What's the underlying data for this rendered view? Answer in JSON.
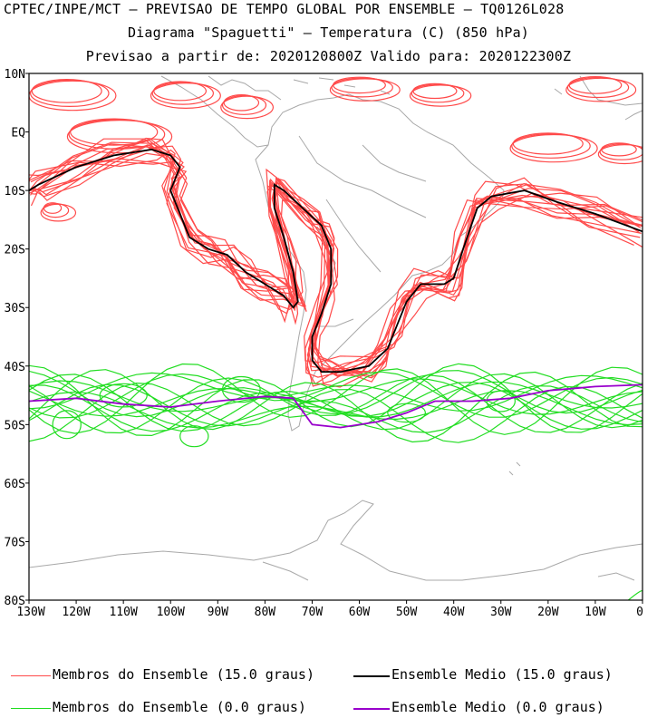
{
  "header": {
    "line1": "CPTEC/INPE/MCT – PREVISAO DE TEMPO GLOBAL POR ENSEMBLE – TQ0126L028",
    "line2": "Diagrama \"Spaguetti\" – Temperatura (C) (850 hPa)",
    "line3": "Previsao a partir de: 2020120800Z  Valido para: 2020122300Z"
  },
  "map": {
    "lat_labels": [
      "10N",
      "EQ",
      "10S",
      "20S",
      "30S",
      "40S",
      "50S",
      "60S",
      "70S",
      "80S"
    ],
    "lon_labels": [
      "130W",
      "120W",
      "110W",
      "100W",
      "90W",
      "80W",
      "70W",
      "60W",
      "50W",
      "40W",
      "30W",
      "20W",
      "10W",
      "0"
    ],
    "lat_range": [
      10,
      -80
    ],
    "lon_range": [
      -130,
      0
    ],
    "colors": {
      "member_15": "#ff4a4a",
      "mean_15": "#000000",
      "member_0": "#22dd22",
      "mean_0": "#9900cc",
      "coast": "#a8a8a8"
    }
  },
  "legend": {
    "items": [
      {
        "label": "Membros do Ensemble (15.0 graus)",
        "color": "#ff4a4a"
      },
      {
        "label": "Ensemble Medio (15.0 graus)",
        "color": "#000000"
      },
      {
        "label": "Membros do Ensemble (0.0 graus)",
        "color": "#22dd22"
      },
      {
        "label": "Ensemble Medio (0.0 graus)",
        "color": "#9900cc"
      }
    ]
  }
}
